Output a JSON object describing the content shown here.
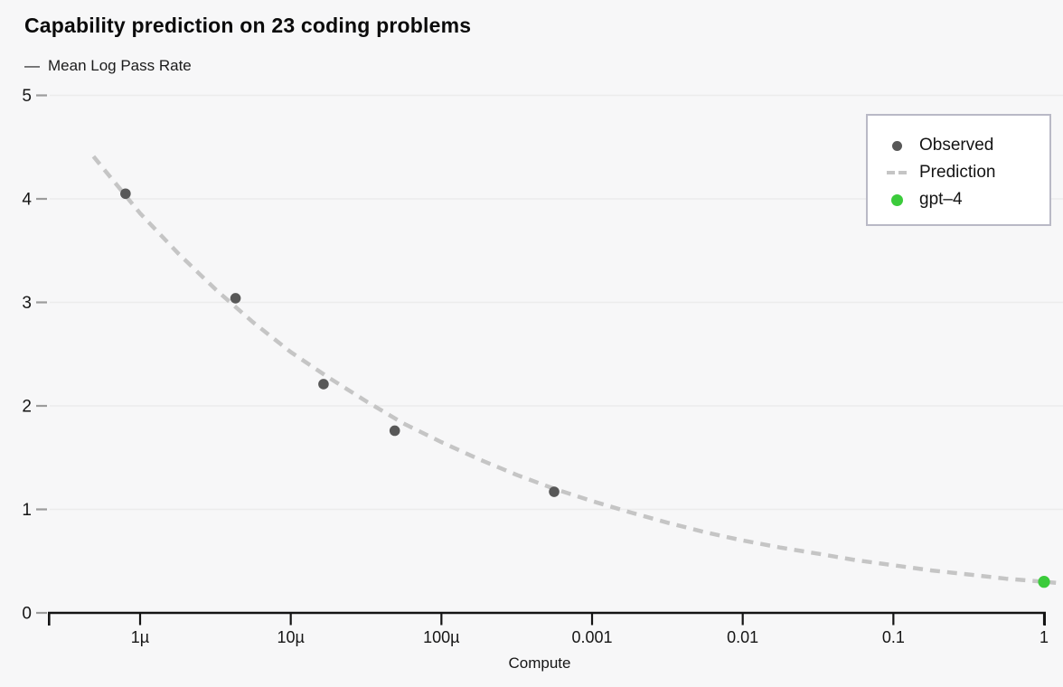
{
  "title": "Capability prediction on 23 coding problems",
  "subtitle": {
    "marker": "—",
    "label": "Mean Log Pass Rate"
  },
  "legend": {
    "items": [
      {
        "label": "Observed",
        "marker": "dot",
        "color": "#585858"
      },
      {
        "label": "Prediction",
        "marker": "dashes",
        "color": "#c5c5c5"
      },
      {
        "label": "gpt–4",
        "marker": "dot",
        "color": "#3bcb3b"
      }
    ]
  },
  "colors": {
    "background": "#f7f7f8",
    "gridline": "#ececec",
    "axis": "#141414",
    "tick_dash": "#9c9c9c",
    "text": "#161616",
    "observed": "#585858",
    "prediction": "#c5c5c5",
    "gpt4_green": "#3bcb3b",
    "legend_border": "#b9b9c6"
  },
  "chart_data": {
    "type": "scatter",
    "title": "Capability prediction on 23 coding problems",
    "xlabel": "Compute",
    "ylabel": "Mean Log Pass Rate",
    "x_scale": "log10",
    "ylim": [
      0,
      5
    ],
    "xlim": [
      2.4e-07,
      1.3
    ],
    "grid": true,
    "legend_position": "top-right",
    "x_ticks": [
      {
        "value": 1e-06,
        "label": "1µ"
      },
      {
        "value": 1e-05,
        "label": "10µ"
      },
      {
        "value": 0.0001,
        "label": "100µ"
      },
      {
        "value": 0.001,
        "label": "0.001"
      },
      {
        "value": 0.01,
        "label": "0.01"
      },
      {
        "value": 0.1,
        "label": "0.1"
      },
      {
        "value": 1,
        "label": "1"
      }
    ],
    "y_ticks": [
      0,
      1,
      2,
      3,
      4,
      5
    ],
    "series": [
      {
        "name": "Observed",
        "type": "scatter",
        "color": "#585858",
        "points": [
          [
            8e-07,
            4.05
          ],
          [
            4.3e-06,
            3.04
          ],
          [
            1.65e-05,
            2.21
          ],
          [
            4.9e-05,
            1.76
          ],
          [
            0.00056,
            1.17
          ]
        ]
      },
      {
        "name": "Prediction",
        "type": "line-dashed",
        "color": "#c5c5c5",
        "points": [
          [
            4.9e-07,
            4.41
          ],
          [
            1e-06,
            3.86
          ],
          [
            1.8e-06,
            3.47
          ],
          [
            3.2e-06,
            3.12
          ],
          [
            5.6e-06,
            2.81
          ],
          [
            1e-05,
            2.52
          ],
          [
            1.8e-05,
            2.27
          ],
          [
            3.2e-05,
            2.04
          ],
          [
            5.6e-05,
            1.83
          ],
          [
            0.0001,
            1.65
          ],
          [
            0.00018,
            1.48
          ],
          [
            0.00032,
            1.33
          ],
          [
            0.00056,
            1.2
          ],
          [
            0.001,
            1.08
          ],
          [
            0.0018,
            0.97
          ],
          [
            0.0032,
            0.87
          ],
          [
            0.0056,
            0.78
          ],
          [
            0.01,
            0.7
          ],
          [
            0.018,
            0.63
          ],
          [
            0.032,
            0.57
          ],
          [
            0.056,
            0.51
          ],
          [
            0.1,
            0.46
          ],
          [
            0.18,
            0.41
          ],
          [
            0.32,
            0.37
          ],
          [
            0.56,
            0.33
          ],
          [
            1,
            0.3
          ],
          [
            1.2,
            0.29
          ]
        ]
      },
      {
        "name": "gpt–4",
        "type": "scatter",
        "color": "#3bcb3b",
        "points": [
          [
            1,
            0.3
          ]
        ]
      }
    ]
  }
}
